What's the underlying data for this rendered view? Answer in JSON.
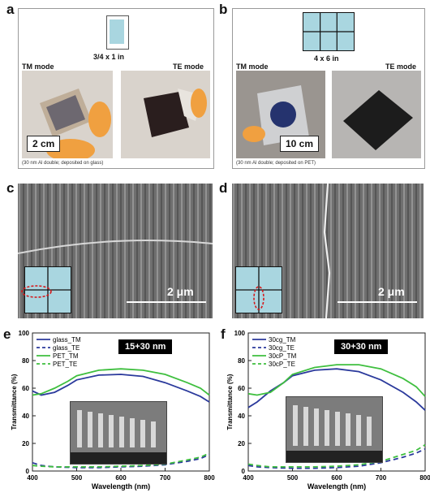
{
  "panels": {
    "a": {
      "label": "a",
      "size_label": "3/4 x 1 in",
      "tm_mode": "TM mode",
      "te_mode": "TE mode",
      "scale": "2 cm",
      "caption": "(30 nm Al double; deposited on glass)"
    },
    "b": {
      "label": "b",
      "size_label": "4 x 6 in",
      "tm_mode": "TM mode",
      "te_mode": "TE mode",
      "scale": "10 cm",
      "caption": "(30 nm Al double; deposited on PET)"
    },
    "c": {
      "label": "c",
      "scale": "2 μm"
    },
    "d": {
      "label": "d",
      "scale": "2 μm"
    },
    "e": {
      "label": "e"
    },
    "f": {
      "label": "f"
    }
  },
  "chart_data": [
    {
      "type": "line",
      "title": "15+30 nm",
      "xlabel": "Wavelength (nm)",
      "ylabel": "Transmittance (%)",
      "xlim": [
        400,
        800
      ],
      "ylim": [
        0,
        100
      ],
      "xticks": [
        "400",
        "500",
        "600",
        "700",
        "800"
      ],
      "yticks": [
        "0",
        "20",
        "40",
        "60",
        "80",
        "100"
      ],
      "legend_position": "top-left",
      "series": [
        {
          "name": "glass_TM",
          "color": "#2b3a9c",
          "dash": "solid",
          "x": [
            400,
            420,
            450,
            480,
            500,
            550,
            600,
            650,
            700,
            750,
            780,
            800
          ],
          "y": [
            58,
            55,
            57,
            62,
            66,
            69.5,
            70,
            68.5,
            64,
            58,
            54,
            50
          ]
        },
        {
          "name": "glass_TE",
          "color": "#2b3a9c",
          "dash": "dashed",
          "x": [
            400,
            420,
            450,
            500,
            550,
            600,
            650,
            700,
            750,
            780,
            800
          ],
          "y": [
            6,
            4,
            3,
            2.5,
            2.5,
            3,
            3.5,
            4.5,
            7,
            9,
            12
          ]
        },
        {
          "name": "PET_TM",
          "color": "#3fbf3f",
          "dash": "solid",
          "x": [
            400,
            420,
            450,
            480,
            500,
            550,
            600,
            650,
            700,
            750,
            780,
            800
          ],
          "y": [
            55,
            56,
            60,
            65,
            69,
            73,
            74,
            73,
            70,
            64,
            60,
            55
          ]
        },
        {
          "name": "PET_TE",
          "color": "#3fbf3f",
          "dash": "dashed",
          "x": [
            400,
            420,
            450,
            500,
            550,
            600,
            650,
            700,
            750,
            780,
            800
          ],
          "y": [
            4,
            3.5,
            3,
            3,
            3,
            3.5,
            4,
            5,
            8,
            10,
            13
          ]
        }
      ]
    },
    {
      "type": "line",
      "title": "30+30 nm",
      "xlabel": "Wavelength (nm)",
      "ylabel": "Transmittance (%)",
      "xlim": [
        400,
        800
      ],
      "ylim": [
        0,
        100
      ],
      "xticks": [
        "400",
        "500",
        "600",
        "700",
        "800"
      ],
      "yticks": [
        "0",
        "20",
        "40",
        "60",
        "80",
        "100"
      ],
      "legend_position": "top-left",
      "series": [
        {
          "name": "30cg_TM",
          "color": "#2b3a9c",
          "dash": "solid",
          "x": [
            400,
            420,
            450,
            480,
            500,
            550,
            600,
            650,
            700,
            750,
            780,
            800
          ],
          "y": [
            46,
            50,
            58,
            64,
            69,
            73,
            74,
            72,
            66,
            57,
            50,
            44
          ]
        },
        {
          "name": "30cg_TE",
          "color": "#2b3a9c",
          "dash": "dashed",
          "x": [
            400,
            420,
            450,
            500,
            550,
            600,
            650,
            700,
            750,
            780,
            800
          ],
          "y": [
            4,
            3,
            2.5,
            2,
            2,
            2.5,
            3.5,
            6,
            10,
            13,
            16
          ]
        },
        {
          "name": "30cP_TM",
          "color": "#3fbf3f",
          "dash": "solid",
          "x": [
            400,
            420,
            450,
            480,
            500,
            550,
            600,
            650,
            700,
            750,
            780,
            800
          ],
          "y": [
            56,
            55,
            57,
            64,
            70,
            75,
            77,
            77,
            74,
            67,
            61,
            54
          ]
        },
        {
          "name": "30cP_TE",
          "color": "#3fbf3f",
          "dash": "dashed",
          "x": [
            400,
            420,
            450,
            500,
            550,
            600,
            650,
            700,
            750,
            780,
            800
          ],
          "y": [
            5,
            4,
            3,
            3,
            3,
            3.5,
            4.5,
            7,
            12,
            15,
            19
          ]
        }
      ]
    }
  ]
}
